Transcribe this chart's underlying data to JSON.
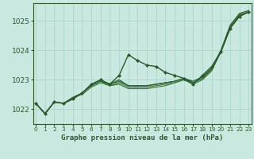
{
  "title": "Graphe pression niveau de la mer (hPa)",
  "background_color": "#c8e8e0",
  "grid_color": "#b0d8d0",
  "line_color_dark": "#2d5a2d",
  "line_color_mid": "#3a7a3a",
  "ylim": [
    1021.5,
    1025.6
  ],
  "yticks": [
    1022,
    1023,
    1024,
    1025
  ],
  "xlim": [
    -0.3,
    23.3
  ],
  "xticks": [
    0,
    1,
    2,
    3,
    4,
    5,
    6,
    7,
    8,
    9,
    10,
    11,
    12,
    13,
    14,
    15,
    16,
    17,
    18,
    19,
    20,
    21,
    22,
    23
  ],
  "series": [
    {
      "y": [
        1022.2,
        1021.85,
        1022.25,
        1022.2,
        1022.35,
        1022.55,
        1022.85,
        1023.0,
        1022.85,
        1023.15,
        1023.85,
        1023.65,
        1023.5,
        1023.45,
        1023.25,
        1023.15,
        1023.05,
        1022.85,
        1023.15,
        1023.45,
        1023.95,
        1024.75,
        1025.15,
        1025.3
      ],
      "markers": true,
      "lw": 1.0,
      "color": "#2d5a2d"
    },
    {
      "y": [
        1022.2,
        1021.85,
        1022.25,
        1022.2,
        1022.35,
        1022.55,
        1022.85,
        1023.0,
        1022.85,
        1023.0,
        1022.8,
        1022.8,
        1022.8,
        1022.85,
        1022.9,
        1022.95,
        1023.05,
        1022.95,
        1023.1,
        1023.4,
        1024.0,
        1024.85,
        1025.25,
        1025.35
      ],
      "markers": false,
      "lw": 0.9,
      "color": "#2d5a2d"
    },
    {
      "y": [
        1022.2,
        1021.85,
        1022.25,
        1022.2,
        1022.4,
        1022.55,
        1022.8,
        1022.95,
        1022.8,
        1022.9,
        1022.75,
        1022.75,
        1022.75,
        1022.8,
        1022.85,
        1022.9,
        1023.0,
        1022.9,
        1023.05,
        1023.35,
        1023.95,
        1024.75,
        1025.2,
        1025.3
      ],
      "markers": false,
      "lw": 0.85,
      "color": "#3a7a3a"
    },
    {
      "y": [
        1022.2,
        1021.85,
        1022.25,
        1022.2,
        1022.4,
        1022.5,
        1022.75,
        1022.9,
        1022.8,
        1022.85,
        1022.7,
        1022.7,
        1022.7,
        1022.75,
        1022.8,
        1022.9,
        1023.0,
        1022.85,
        1023.0,
        1023.3,
        1023.95,
        1024.75,
        1025.15,
        1025.3
      ],
      "markers": false,
      "lw": 0.8,
      "color": "#3a7a3a"
    },
    {
      "y": [
        1022.2,
        1021.85,
        1022.25,
        1022.2,
        1022.4,
        1022.55,
        1022.8,
        1022.95,
        1022.85,
        1022.95,
        1022.8,
        1022.8,
        1022.8,
        1022.85,
        1022.9,
        1022.95,
        1023.05,
        1022.9,
        1023.05,
        1023.35,
        1023.95,
        1024.8,
        1025.2,
        1025.3
      ],
      "markers": false,
      "lw": 0.8,
      "color": "#2d5a2d"
    }
  ],
  "ytick_fontsize": 6.5,
  "xtick_fontsize": 5.2,
  "xlabel_fontsize": 6.5,
  "spine_color": "#2d5a2d"
}
